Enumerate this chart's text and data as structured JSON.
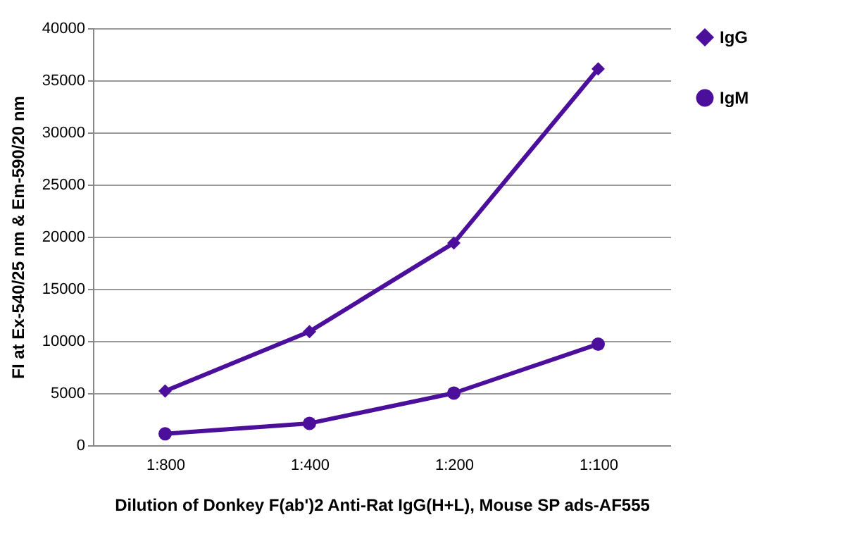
{
  "chart_data": {
    "type": "line",
    "xlabel": "Dilution of Donkey F(ab')2 Anti-Rat IgG(H+L), Mouse SP ads-AF555",
    "ylabel": "FI at Ex-540/25 nm & Em-590/20 nm",
    "categories": [
      "1:800",
      "1:400",
      "1:200",
      "1:100"
    ],
    "series": [
      {
        "name": "IgG",
        "color": "#4b0f9c",
        "marker": "diamond",
        "values": [
          5200,
          10900,
          19400,
          36100
        ]
      },
      {
        "name": "IgM",
        "color": "#4b0f9c",
        "marker": "circle",
        "values": [
          1100,
          2100,
          5000,
          9700
        ]
      }
    ],
    "ylim": [
      0,
      40000
    ],
    "yticks": [
      0,
      5000,
      10000,
      15000,
      20000,
      25000,
      30000,
      35000,
      40000
    ],
    "grid": "y",
    "legend": "right"
  }
}
